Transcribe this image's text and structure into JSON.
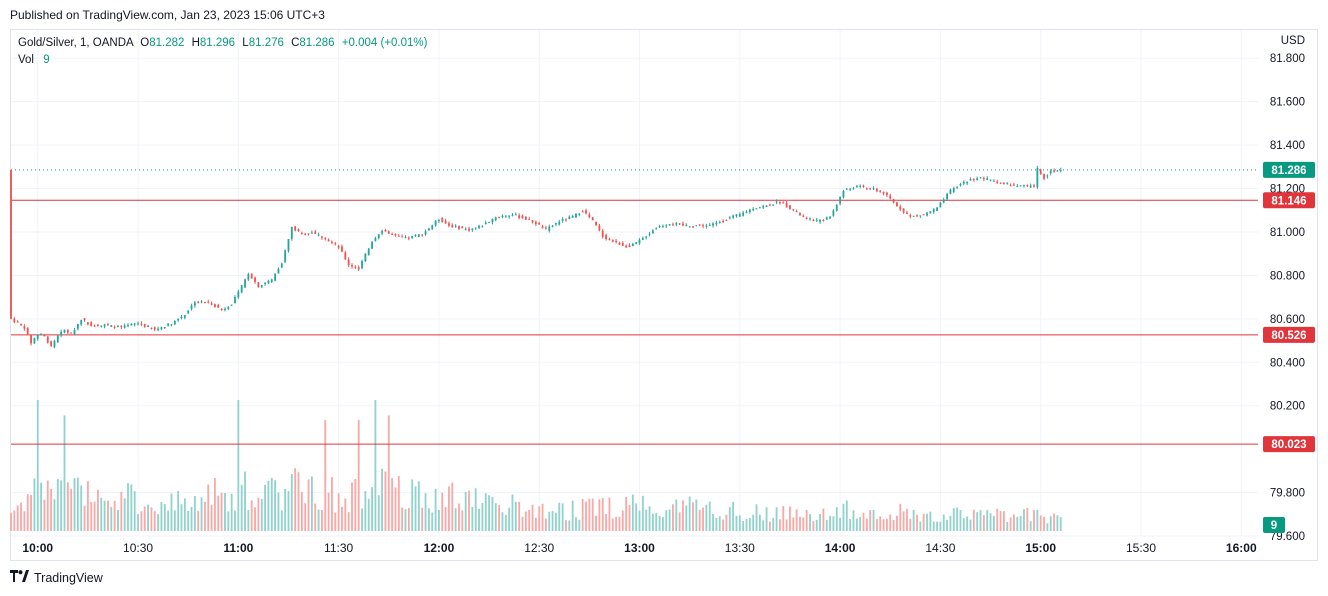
{
  "header": {
    "published": "Published on TradingView.com, Jan 23, 2023 15:06 UTC+3"
  },
  "legend": {
    "symbol": "Gold/Silver, 1, OANDA",
    "o_label": "O",
    "o_value": "81.282",
    "h_label": "H",
    "h_value": "81.296",
    "l_label": "L",
    "l_value": "81.276",
    "c_label": "C",
    "c_value": "81.286",
    "change": "+0.004 (+0.01%)",
    "vol_label": "Vol",
    "vol_value": "9"
  },
  "footer": {
    "brand": "TradingView",
    "logo_icon": "tradingview-logo-icon"
  },
  "colors": {
    "up": "#26a69a",
    "down": "#ef5350",
    "up_volume": "#92d2cc",
    "down_volume": "#f7a9a7",
    "level_line": "#e0353b",
    "last_price": "#089981",
    "grid": "#f0f3fa"
  },
  "chart_data": {
    "type": "candlestick",
    "symbol": "Gold/Silver",
    "interval": "1",
    "exchange": "OANDA",
    "currency": "USD",
    "y_ticks": [
      "81.800",
      "81.600",
      "81.400",
      "81.200",
      "81.000",
      "80.800",
      "80.600",
      "80.400",
      "80.200",
      "79.800",
      "79.600"
    ],
    "y_tick_values": [
      81.8,
      81.6,
      81.4,
      81.2,
      81.0,
      80.8,
      80.6,
      80.4,
      80.2,
      79.8,
      79.6
    ],
    "x_ticks": [
      "10:00",
      "10:30",
      "11:00",
      "11:30",
      "12:00",
      "12:30",
      "13:00",
      "13:30",
      "14:00",
      "14:30",
      "15:00",
      "15:30",
      "16:00"
    ],
    "x_range": [
      "09:52",
      "16:05"
    ],
    "y_range": [
      79.6,
      81.93
    ],
    "horizontal_levels": [
      {
        "value": 81.146,
        "label": "81.146"
      },
      {
        "value": 80.526,
        "label": "80.526"
      },
      {
        "value": 80.023,
        "label": "80.023"
      }
    ],
    "last_price": {
      "value": 81.286,
      "label": "81.286"
    },
    "last_volume": {
      "value": 9,
      "label": "9"
    },
    "price_path": [
      [
        "09:52",
        80.6
      ],
      [
        "09:56",
        80.56
      ],
      [
        "09:58",
        80.49
      ],
      [
        "10:00",
        80.53
      ],
      [
        "10:02",
        80.52
      ],
      [
        "10:04",
        80.47
      ],
      [
        "10:06",
        80.52
      ],
      [
        "10:08",
        80.55
      ],
      [
        "10:10",
        80.53
      ],
      [
        "10:13",
        80.6
      ],
      [
        "10:16",
        80.57
      ],
      [
        "10:20",
        80.57
      ],
      [
        "10:25",
        80.56
      ],
      [
        "10:30",
        80.58
      ],
      [
        "10:35",
        80.55
      ],
      [
        "10:40",
        80.58
      ],
      [
        "10:44",
        80.62
      ],
      [
        "10:47",
        80.68
      ],
      [
        "10:52",
        80.67
      ],
      [
        "10:55",
        80.64
      ],
      [
        "10:58",
        80.67
      ],
      [
        "11:00",
        80.72
      ],
      [
        "11:03",
        80.81
      ],
      [
        "11:06",
        80.75
      ],
      [
        "11:10",
        80.78
      ],
      [
        "11:13",
        80.86
      ],
      [
        "11:16",
        81.02
      ],
      [
        "11:19",
        80.99
      ],
      [
        "11:22",
        81.0
      ],
      [
        "11:26",
        80.97
      ],
      [
        "11:30",
        80.93
      ],
      [
        "11:33",
        80.85
      ],
      [
        "11:36",
        80.83
      ],
      [
        "11:40",
        80.96
      ],
      [
        "11:43",
        81.01
      ],
      [
        "11:47",
        80.98
      ],
      [
        "11:50",
        80.97
      ],
      [
        "11:55",
        80.99
      ],
      [
        "12:00",
        81.06
      ],
      [
        "12:03",
        81.03
      ],
      [
        "12:06",
        81.02
      ],
      [
        "12:09",
        81.01
      ],
      [
        "12:13",
        81.03
      ],
      [
        "12:17",
        81.07
      ],
      [
        "12:22",
        81.08
      ],
      [
        "12:26",
        81.06
      ],
      [
        "12:29",
        81.04
      ],
      [
        "12:32",
        81.01
      ],
      [
        "12:36",
        81.05
      ],
      [
        "12:40",
        81.07
      ],
      [
        "12:43",
        81.1
      ],
      [
        "12:46",
        81.05
      ],
      [
        "12:49",
        80.98
      ],
      [
        "12:53",
        80.95
      ],
      [
        "12:57",
        80.93
      ],
      [
        "13:01",
        80.97
      ],
      [
        "13:05",
        81.02
      ],
      [
        "13:09",
        81.04
      ],
      [
        "13:13",
        81.03
      ],
      [
        "13:17",
        81.03
      ],
      [
        "13:21",
        81.03
      ],
      [
        "13:26",
        81.06
      ],
      [
        "13:30",
        81.08
      ],
      [
        "13:34",
        81.11
      ],
      [
        "13:38",
        81.12
      ],
      [
        "13:42",
        81.14
      ],
      [
        "13:46",
        81.1
      ],
      [
        "13:50",
        81.06
      ],
      [
        "13:54",
        81.05
      ],
      [
        "13:57",
        81.07
      ],
      [
        "14:01",
        81.19
      ],
      [
        "14:05",
        81.21
      ],
      [
        "14:09",
        81.2
      ],
      [
        "14:13",
        81.18
      ],
      [
        "14:17",
        81.12
      ],
      [
        "14:21",
        81.07
      ],
      [
        "14:25",
        81.08
      ],
      [
        "14:29",
        81.11
      ],
      [
        "14:33",
        81.19
      ],
      [
        "14:37",
        81.23
      ],
      [
        "14:41",
        81.25
      ],
      [
        "14:45",
        81.24
      ],
      [
        "14:50",
        81.22
      ],
      [
        "14:54",
        81.21
      ],
      [
        "14:58",
        81.21
      ],
      [
        "14:59",
        81.29
      ],
      [
        "15:01",
        81.25
      ],
      [
        "15:03",
        81.28
      ],
      [
        "15:06",
        81.286
      ]
    ],
    "volume_levels": [
      [
        "09:52",
        14
      ],
      [
        "10:00",
        32
      ],
      [
        "10:10",
        28
      ],
      [
        "10:20",
        26
      ],
      [
        "10:30",
        22
      ],
      [
        "10:40",
        20
      ],
      [
        "10:50",
        24
      ],
      [
        "11:00",
        30
      ],
      [
        "11:10",
        28
      ],
      [
        "11:20",
        34
      ],
      [
        "11:30",
        25
      ],
      [
        "11:40",
        32
      ],
      [
        "11:50",
        28
      ],
      [
        "12:00",
        26
      ],
      [
        "12:10",
        22
      ],
      [
        "12:20",
        18
      ],
      [
        "12:30",
        16
      ],
      [
        "12:40",
        15
      ],
      [
        "12:50",
        17
      ],
      [
        "13:00",
        20
      ],
      [
        "13:10",
        19
      ],
      [
        "13:20",
        17
      ],
      [
        "13:30",
        14
      ],
      [
        "13:40",
        12
      ],
      [
        "13:50",
        13
      ],
      [
        "14:00",
        15
      ],
      [
        "14:10",
        14
      ],
      [
        "14:20",
        13
      ],
      [
        "14:30",
        12
      ],
      [
        "14:40",
        12
      ],
      [
        "14:50",
        11
      ],
      [
        "15:00",
        12
      ],
      [
        "15:06",
        9
      ]
    ],
    "volume_spikes": [
      [
        "10:00",
        85
      ],
      [
        "10:08",
        75
      ],
      [
        "11:00",
        85
      ],
      [
        "11:26",
        72
      ],
      [
        "11:36",
        72
      ],
      [
        "11:41",
        85
      ],
      [
        "11:45",
        75
      ]
    ],
    "volume_scale_max": 85
  }
}
